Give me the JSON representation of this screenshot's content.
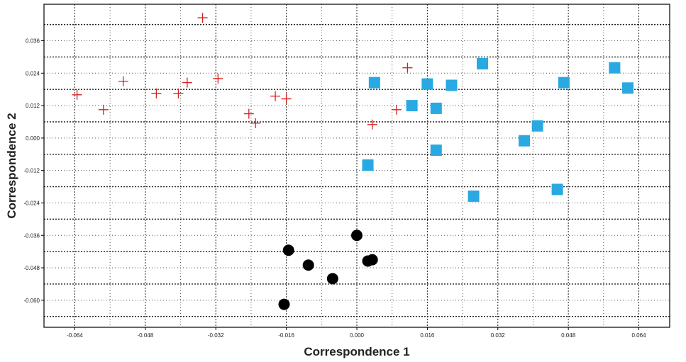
{
  "chart_data": {
    "type": "scatter",
    "title": "",
    "xlabel": "Correspondence 1",
    "ylabel": "Correspondence 2",
    "xlim": [
      -0.071,
      0.071
    ],
    "ylim": [
      -0.07,
      0.0495
    ],
    "x_ticks": [
      -0.064,
      -0.048,
      -0.032,
      -0.016,
      0.0,
      0.016,
      0.032,
      0.048,
      0.064
    ],
    "y_ticks": [
      0.036,
      0.024,
      0.012,
      0.0,
      -0.012,
      -0.024,
      -0.036,
      -0.048,
      -0.06
    ],
    "x_tick_labels": [
      "-0.064",
      "-0.048",
      "-0.032",
      "-0.016",
      "0.000",
      "0.016",
      "0.032",
      "0.048",
      "0.064"
    ],
    "y_tick_labels": [
      "0.036",
      "0.024",
      "0.012",
      "0.000",
      "-0.012",
      "-0.024",
      "-0.036",
      "-0.048",
      "-0.060"
    ],
    "grid": true,
    "series": [
      {
        "marker": "plus",
        "color": "#d62020",
        "points": [
          [
            -0.0635,
            0.016
          ],
          [
            -0.0575,
            0.0105
          ],
          [
            -0.053,
            0.021
          ],
          [
            -0.0455,
            0.0165
          ],
          [
            -0.0405,
            0.0165
          ],
          [
            -0.0385,
            0.0205
          ],
          [
            -0.035,
            0.0445
          ],
          [
            -0.0315,
            0.022
          ],
          [
            -0.0245,
            0.009
          ],
          [
            -0.023,
            0.0055
          ],
          [
            -0.0185,
            0.0155
          ],
          [
            -0.016,
            0.0145
          ],
          [
            0.0035,
            0.005
          ],
          [
            0.009,
            0.0105
          ],
          [
            0.0115,
            0.026
          ]
        ]
      },
      {
        "marker": "square",
        "color": "#29a9e1",
        "points": [
          [
            0.004,
            0.0205
          ],
          [
            0.0025,
            -0.01
          ],
          [
            0.0125,
            0.012
          ],
          [
            0.016,
            0.02
          ],
          [
            0.018,
            0.011
          ],
          [
            0.018,
            -0.0045
          ],
          [
            0.0215,
            0.0195
          ],
          [
            0.0265,
            -0.0215
          ],
          [
            0.0285,
            0.0275
          ],
          [
            0.038,
            -0.001
          ],
          [
            0.041,
            0.0045
          ],
          [
            0.0455,
            -0.019
          ],
          [
            0.047,
            0.0205
          ],
          [
            0.0585,
            0.026
          ],
          [
            0.0615,
            0.0185
          ]
        ]
      },
      {
        "marker": "circle",
        "color": "#000000",
        "points": [
          [
            0.0,
            -0.036
          ],
          [
            -0.0155,
            -0.0415
          ],
          [
            -0.011,
            -0.047
          ],
          [
            -0.0055,
            -0.052
          ],
          [
            0.0025,
            -0.0455
          ],
          [
            0.0035,
            -0.045
          ],
          [
            -0.0165,
            -0.0615
          ]
        ]
      }
    ]
  }
}
